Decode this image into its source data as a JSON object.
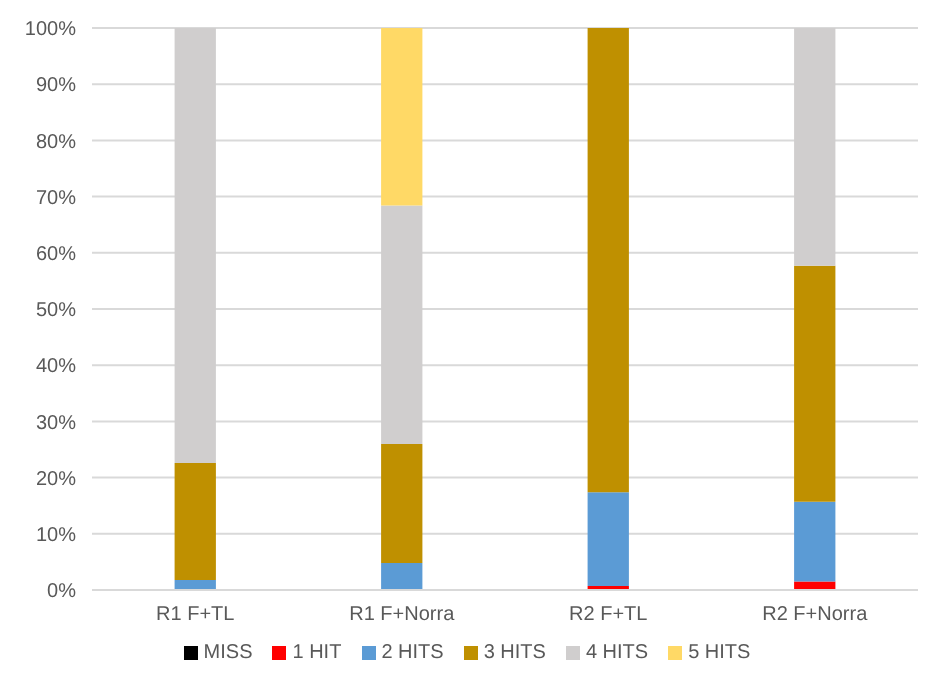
{
  "chart_data": {
    "type": "bar",
    "stacked": true,
    "categories": [
      "R1 F+TL",
      "R1 F+Norra",
      "R2 F+TL",
      "R2 F+Norra"
    ],
    "series": [
      {
        "name": "MISS",
        "color": "#000000",
        "values": [
          0,
          0,
          0,
          0
        ]
      },
      {
        "name": "1 HIT",
        "color": "#ff0000",
        "values": [
          0,
          0,
          0.7,
          1.5
        ]
      },
      {
        "name": "2 HITS",
        "color": "#5b9bd5",
        "values": [
          1.8,
          4.8,
          16.7,
          14.2
        ]
      },
      {
        "name": "3 HITS",
        "color": "#bf9000",
        "values": [
          20.8,
          21.2,
          82.6,
          42.0
        ]
      },
      {
        "name": "4 HITS",
        "color": "#d0cece",
        "values": [
          77.4,
          42.4,
          0,
          42.3
        ]
      },
      {
        "name": "5 HITS",
        "color": "#ffd966",
        "values": [
          0,
          31.6,
          0,
          0
        ]
      }
    ],
    "ylim": [
      0,
      100
    ],
    "yticks": [
      {
        "value": 0,
        "label": "0%"
      },
      {
        "value": 10,
        "label": "10%"
      },
      {
        "value": 20,
        "label": "20%"
      },
      {
        "value": 30,
        "label": "30%"
      },
      {
        "value": 40,
        "label": "40%"
      },
      {
        "value": 50,
        "label": "50%"
      },
      {
        "value": 60,
        "label": "60%"
      },
      {
        "value": 70,
        "label": "70%"
      },
      {
        "value": 80,
        "label": "80%"
      },
      {
        "value": 90,
        "label": "90%"
      },
      {
        "value": 100,
        "label": "100%"
      }
    ],
    "grid": "y",
    "legend": "bottom"
  }
}
